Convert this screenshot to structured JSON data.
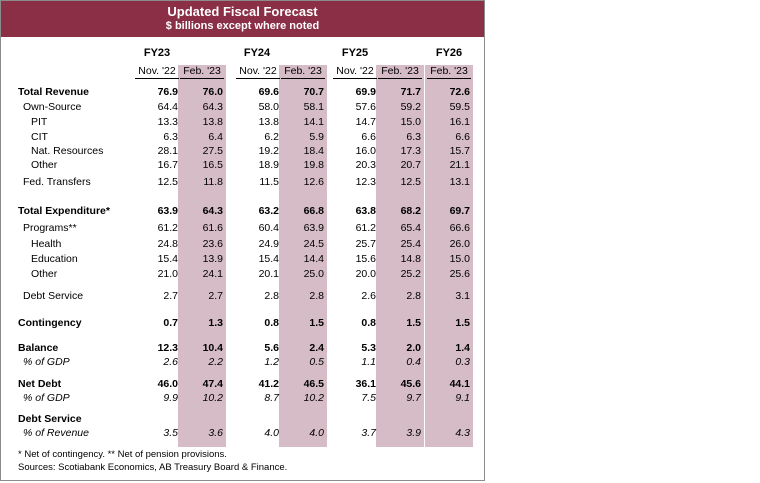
{
  "title": "Updated Fiscal Forecast",
  "subtitle": "$ billions except where noted",
  "fiscal_years": [
    "FY23",
    "FY24",
    "FY25",
    "FY26"
  ],
  "sub_headers": [
    "Nov. '22",
    "Feb. '23",
    "Nov. '22",
    "Feb. '23",
    "Nov. '22",
    "Feb. '23",
    "Feb. '23"
  ],
  "rows": [
    {
      "label": "Total Revenue",
      "style": "bold",
      "indent": 0,
      "values": [
        "76.9",
        "76.0",
        "69.6",
        "70.7",
        "69.9",
        "71.7",
        "72.6"
      ]
    },
    {
      "label": "Own-Source",
      "style": "",
      "indent": 1,
      "values": [
        "64.4",
        "64.3",
        "58.0",
        "58.1",
        "57.6",
        "59.2",
        "59.5"
      ]
    },
    {
      "label": "PIT",
      "style": "",
      "indent": 2,
      "values": [
        "13.3",
        "13.8",
        "13.8",
        "14.1",
        "14.7",
        "15.0",
        "16.1"
      ]
    },
    {
      "label": "CIT",
      "style": "",
      "indent": 2,
      "values": [
        "6.3",
        "6.4",
        "6.2",
        "5.9",
        "6.6",
        "6.3",
        "6.6"
      ]
    },
    {
      "label": "Nat. Resources",
      "style": "",
      "indent": 2,
      "values": [
        "28.1",
        "27.5",
        "19.2",
        "18.4",
        "16.0",
        "17.3",
        "15.7"
      ]
    },
    {
      "label": "Other",
      "style": "",
      "indent": 2,
      "values": [
        "16.7",
        "16.5",
        "18.9",
        "19.8",
        "20.3",
        "20.7",
        "21.1"
      ]
    },
    {
      "label": "Fed. Transfers",
      "style": "",
      "indent": 1,
      "values": [
        "12.5",
        "11.8",
        "11.5",
        "12.6",
        "12.3",
        "12.5",
        "13.1"
      ]
    },
    {
      "label": "Total Expenditure*",
      "style": "bold",
      "indent": 0,
      "values": [
        "63.9",
        "64.3",
        "63.2",
        "66.8",
        "63.8",
        "68.2",
        "69.7"
      ]
    },
    {
      "label": "Programs**",
      "style": "",
      "indent": 1,
      "values": [
        "61.2",
        "61.6",
        "60.4",
        "63.9",
        "61.2",
        "65.4",
        "66.6"
      ]
    },
    {
      "label": "Health",
      "style": "",
      "indent": 2,
      "values": [
        "24.8",
        "23.6",
        "24.9",
        "24.5",
        "25.7",
        "25.4",
        "26.0"
      ]
    },
    {
      "label": "Education",
      "style": "",
      "indent": 2,
      "values": [
        "15.4",
        "13.9",
        "15.4",
        "14.4",
        "15.6",
        "14.8",
        "15.0"
      ]
    },
    {
      "label": "Other",
      "style": "",
      "indent": 2,
      "values": [
        "21.0",
        "24.1",
        "20.1",
        "25.0",
        "20.0",
        "25.2",
        "25.6"
      ]
    },
    {
      "label": "Debt Service",
      "style": "",
      "indent": 1,
      "values": [
        "2.7",
        "2.7",
        "2.8",
        "2.8",
        "2.6",
        "2.8",
        "3.1"
      ]
    },
    {
      "label": "Contingency",
      "style": "bold",
      "indent": 0,
      "values": [
        "0.7",
        "1.3",
        "0.8",
        "1.5",
        "0.8",
        "1.5",
        "1.5"
      ]
    },
    {
      "label": "Balance",
      "style": "bold",
      "indent": 0,
      "values": [
        "12.3",
        "10.4",
        "5.6",
        "2.4",
        "5.3",
        "2.0",
        "1.4"
      ]
    },
    {
      "label": "% of GDP",
      "style": "ital",
      "indent": 1,
      "values": [
        "2.6",
        "2.2",
        "1.2",
        "0.5",
        "1.1",
        "0.4",
        "0.3"
      ]
    },
    {
      "label": "Net Debt",
      "style": "bold",
      "indent": 0,
      "values": [
        "46.0",
        "47.4",
        "41.2",
        "46.5",
        "36.1",
        "45.6",
        "44.1"
      ]
    },
    {
      "label": "% of GDP",
      "style": "ital",
      "indent": 1,
      "values": [
        "9.9",
        "10.2",
        "8.7",
        "10.2",
        "7.5",
        "9.7",
        "9.1"
      ]
    },
    {
      "label": "Debt Service",
      "style": "bold",
      "indent": 0,
      "values": []
    },
    {
      "label": "% of Revenue",
      "style": "ital",
      "indent": 1,
      "values": [
        "3.5",
        "3.6",
        "4.0",
        "4.0",
        "3.7",
        "3.9",
        "4.3"
      ]
    }
  ],
  "footnote_1": "* Net of contingency. ** Net of pension provisions.",
  "footnote_2": "Sources: Scotiabank Economics, AB Treasury Board & Finance.",
  "colors": {
    "banner": "#8b2f47",
    "shade": "#d6bcc6"
  }
}
